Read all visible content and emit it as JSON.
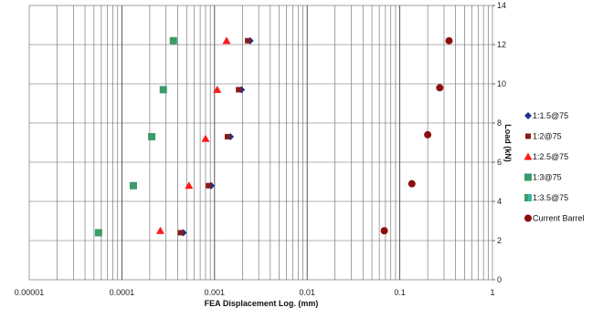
{
  "chart_data": {
    "type": "scatter",
    "title": "",
    "xlabel": "FEA Displacement Log. (mm)",
    "ylabel": "Load (kN)",
    "x_scale": "log",
    "xlim": [
      1e-05,
      1
    ],
    "ylim": [
      0,
      14
    ],
    "x_tick_labels": [
      "0.00001",
      "0.0001",
      "0.001",
      "0.01",
      "0.1",
      "1"
    ],
    "y_ticks": [
      0,
      2,
      4,
      6,
      8,
      10,
      12,
      14
    ],
    "grid": true,
    "legend": "right",
    "series": [
      {
        "name": "1:1.5@75",
        "marker": "diamond",
        "color": "#1f2f8f",
        "points": [
          [
            0.00046,
            2.4
          ],
          [
            0.00092,
            4.8
          ],
          [
            0.00148,
            7.3
          ],
          [
            0.00195,
            9.7
          ],
          [
            0.00242,
            12.2
          ]
        ]
      },
      {
        "name": "1:2@75",
        "marker": "square-small",
        "color": "#8b1a1a",
        "points": [
          [
            0.00043,
            2.4
          ],
          [
            0.00086,
            4.8
          ],
          [
            0.00138,
            7.3
          ],
          [
            0.00182,
            9.7
          ],
          [
            0.00228,
            12.2
          ]
        ]
      },
      {
        "name": "1:2.5@75",
        "marker": "triangle",
        "color": "#ff1a1a",
        "points": [
          [
            0.00026,
            2.5
          ],
          [
            0.00053,
            4.8
          ],
          [
            0.0008,
            7.2
          ],
          [
            0.00107,
            9.7
          ],
          [
            0.00135,
            12.2
          ]
        ]
      },
      {
        "name": "1:3@75",
        "marker": "square",
        "color": "#3a9a6a",
        "points": [
          [
            5.6e-05,
            2.4
          ],
          [
            0.000133,
            4.8
          ],
          [
            0.00021,
            7.3
          ],
          [
            0.00028,
            9.7
          ],
          [
            0.00036,
            12.2
          ]
        ]
      },
      {
        "name": "1:3.5@75",
        "marker": "square-split",
        "color": "#36b8a0",
        "points": []
      },
      {
        "name": "Current Barrel",
        "marker": "circle",
        "color": "#8b0e0e",
        "points": [
          [
            0.068,
            2.5
          ],
          [
            0.135,
            4.9
          ],
          [
            0.2,
            7.4
          ],
          [
            0.27,
            9.8
          ],
          [
            0.34,
            12.2
          ]
        ]
      }
    ]
  }
}
